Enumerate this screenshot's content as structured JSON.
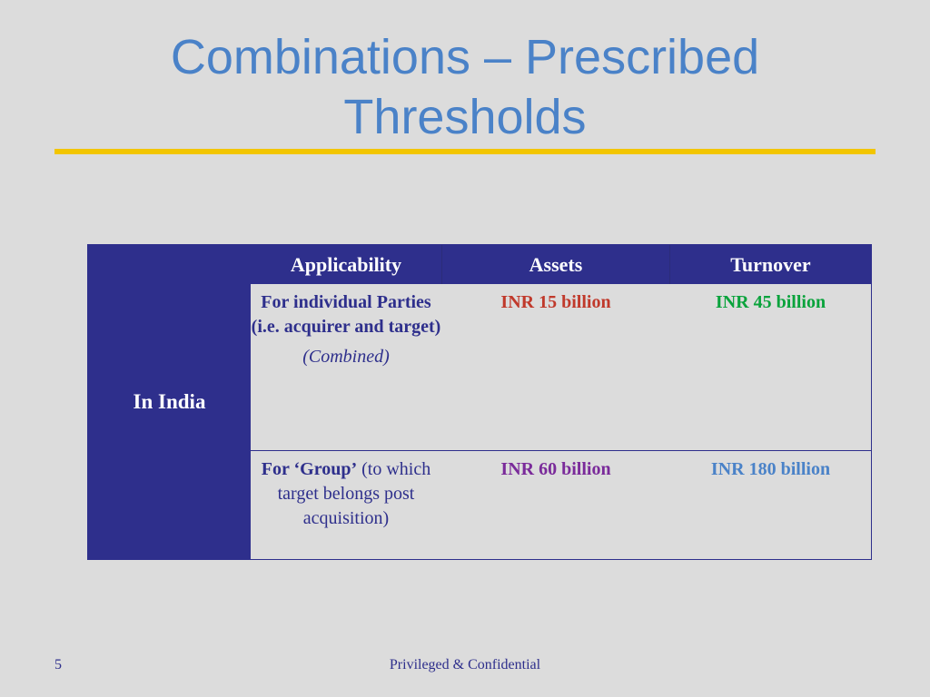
{
  "slide": {
    "title_line1": "Combinations – Prescribed",
    "title_line2": "Thresholds",
    "accent_color": "#f2c500",
    "title_color": "#4a82c8",
    "table_color": "#2e2f8c"
  },
  "table": {
    "row_header": "In India",
    "headers": [
      "Applicability",
      "Assets",
      "Turnover"
    ],
    "rows": [
      {
        "applicability_main": "For individual Parties (i.e. acquirer and target)",
        "applicability_note": "(Combined)",
        "assets": "INR 15 billion",
        "turnover": "INR 45 billion",
        "assets_color": "#c0392b",
        "turnover_color": "#0aa33c"
      },
      {
        "applicability_bold": "For ‘Group’",
        "applicability_rest": " (to which target belongs post acquisition)",
        "assets": "INR 60 billion",
        "turnover": "INR 180 billion",
        "assets_color": "#7a2a9a",
        "turnover_color": "#4a82c8"
      }
    ]
  },
  "footer": {
    "page_number": "5",
    "text": "Privileged & Confidential"
  }
}
